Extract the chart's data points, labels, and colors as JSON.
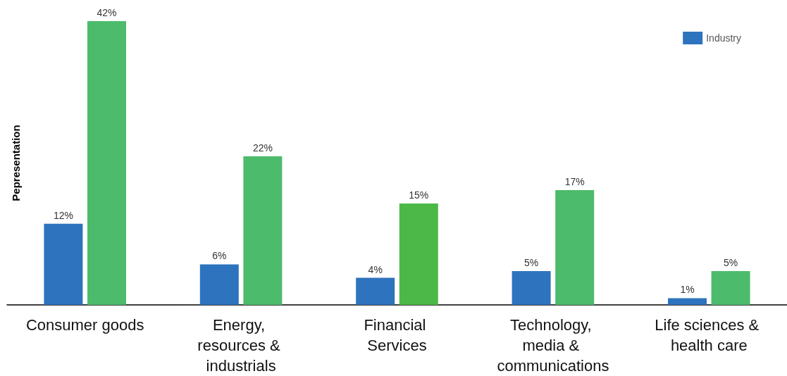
{
  "chart_data": {
    "type": "bar",
    "ylabel": "Pepresentation",
    "categories": [
      "Consumer goods",
      "Energy, resources & industrials",
      "Financial Services",
      "Technology, media & communications",
      "Life sciences & health care"
    ],
    "series": [
      {
        "name": "Industry",
        "color": "#2e73bd",
        "values": [
          12,
          6,
          4,
          5,
          1
        ],
        "value_labels": [
          "12%",
          "6%",
          "4%",
          "5%",
          "1%"
        ]
      },
      {
        "color": "#4cbb6c",
        "colors": [
          "#4cbb6c",
          "#4cbb6c",
          "#4cb848",
          "#4cbb6c",
          "#4cbb6c"
        ],
        "values": [
          42,
          22,
          15,
          17,
          5
        ],
        "value_labels": [
          "42%",
          "22%",
          "15%",
          "17%",
          "5%"
        ]
      }
    ],
    "legend": "top right",
    "grid": false
  }
}
